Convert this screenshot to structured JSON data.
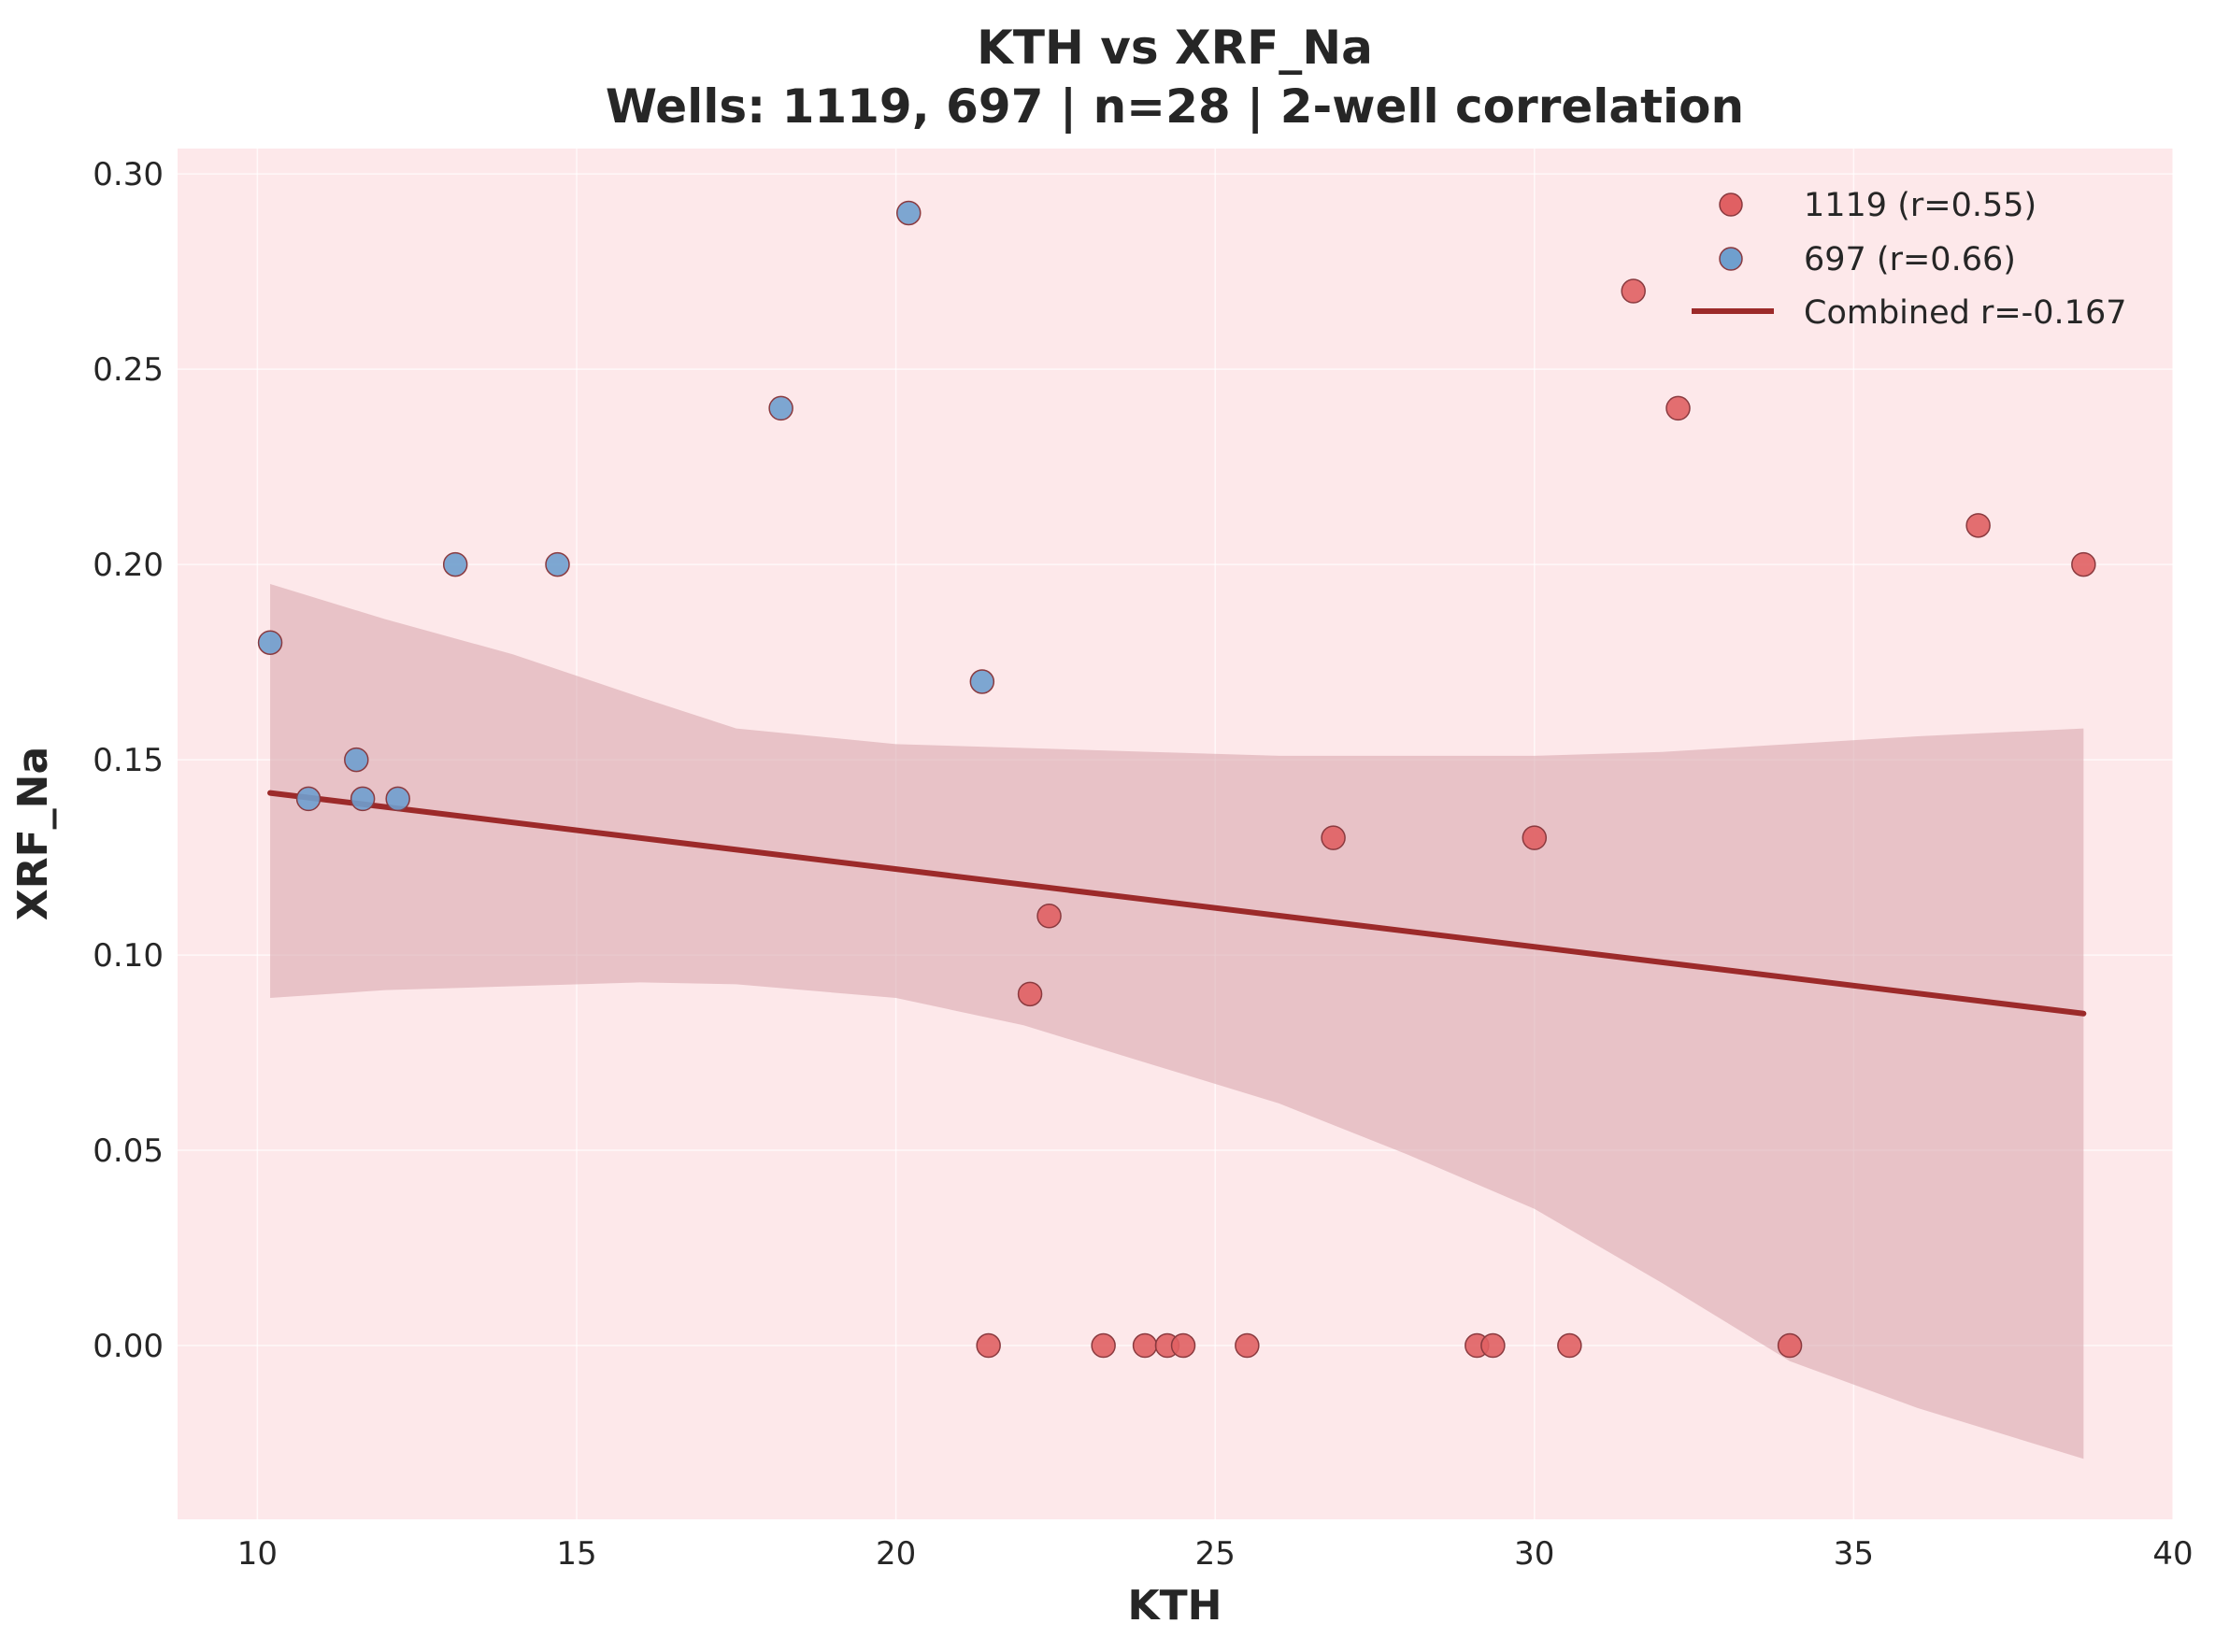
{
  "chart_data": {
    "type": "scatter",
    "title": "KTH vs XRF_Na",
    "subtitle": "Wells: 1119, 697 | n=28 | 2-well correlation",
    "xlabel": "KTH",
    "ylabel": "XRF_Na",
    "xlim": [
      8.75,
      40.0
    ],
    "ylim": [
      -0.0445,
      0.3065
    ],
    "xticks": [
      "10",
      "15",
      "20",
      "25",
      "30",
      "35",
      "40"
    ],
    "yticks": [
      "0.00",
      "0.05",
      "0.10",
      "0.15",
      "0.20",
      "0.25",
      "0.30"
    ],
    "grid": true,
    "legend_position": "top-right",
    "background_color": "#fde8ea",
    "series": [
      {
        "name": "1119 (r=0.55)",
        "color": "#e06063",
        "points": [
          [
            21.45,
            0.0
          ],
          [
            23.25,
            0.0
          ],
          [
            23.9,
            0.0
          ],
          [
            24.25,
            0.0
          ],
          [
            24.5,
            0.0
          ],
          [
            25.5,
            0.0
          ],
          [
            29.1,
            0.0
          ],
          [
            29.35,
            0.0
          ],
          [
            30.55,
            0.0
          ],
          [
            34.0,
            0.0
          ],
          [
            22.1,
            0.09
          ],
          [
            22.4,
            0.11
          ],
          [
            26.85,
            0.13
          ],
          [
            30.0,
            0.13
          ],
          [
            31.55,
            0.27
          ],
          [
            32.25,
            0.24
          ],
          [
            36.95,
            0.21
          ],
          [
            38.6,
            0.2
          ]
        ]
      },
      {
        "name": "697 (r=0.66)",
        "color": "#6f9fce",
        "points": [
          [
            10.2,
            0.18
          ],
          [
            10.8,
            0.14
          ],
          [
            11.55,
            0.15
          ],
          [
            11.65,
            0.14
          ],
          [
            12.2,
            0.14
          ],
          [
            13.1,
            0.2
          ],
          [
            14.7,
            0.2
          ],
          [
            18.2,
            0.24
          ],
          [
            20.2,
            0.29
          ],
          [
            21.35,
            0.17
          ]
        ]
      }
    ],
    "regression": {
      "name": "Combined r=-0.167",
      "color": "#9c2a2a",
      "x": [
        10.2,
        38.6
      ],
      "y": [
        0.1415,
        0.085
      ]
    },
    "confidence_band": {
      "color": "#d7a3aa",
      "x": [
        10.2,
        12.0,
        14.0,
        16.0,
        17.5,
        20.0,
        22.0,
        24.0,
        26.0,
        28.0,
        30.0,
        32.0,
        34.0,
        36.0,
        38.6
      ],
      "upper": [
        0.195,
        0.186,
        0.177,
        0.166,
        0.158,
        0.154,
        0.153,
        0.152,
        0.151,
        0.151,
        0.151,
        0.152,
        0.154,
        0.156,
        0.158
      ],
      "lower": [
        0.089,
        0.091,
        0.092,
        0.093,
        0.0925,
        0.089,
        0.082,
        0.072,
        0.062,
        0.049,
        0.035,
        0.016,
        -0.004,
        -0.016,
        -0.029
      ]
    }
  }
}
